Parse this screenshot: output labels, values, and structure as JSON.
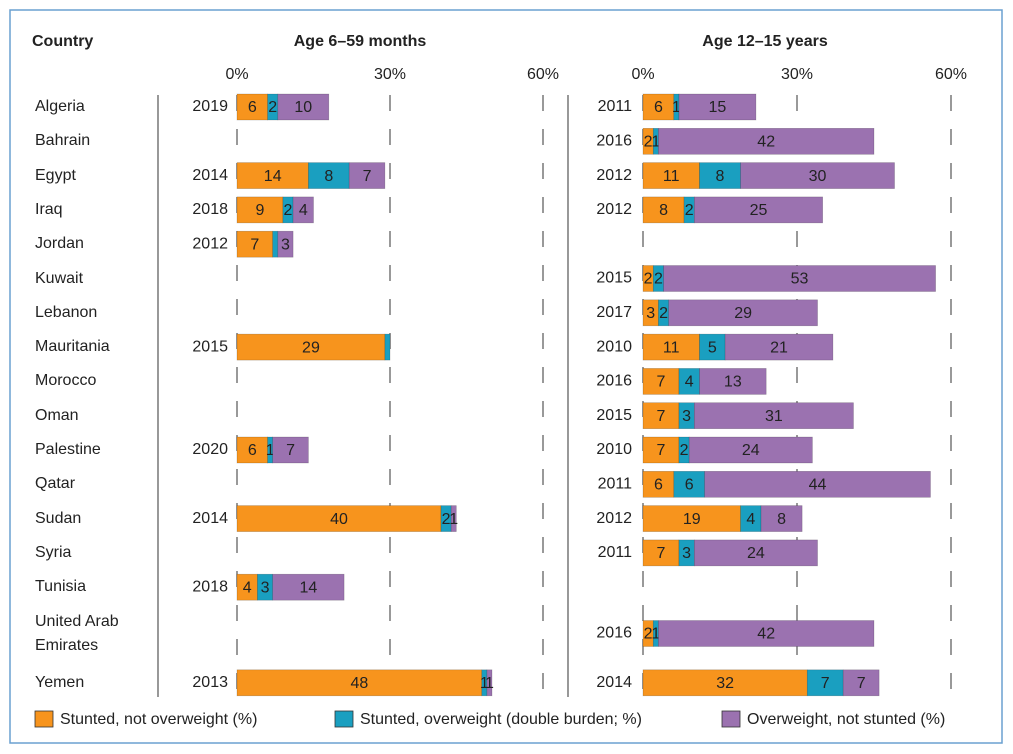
{
  "chart_data": {
    "type": "bar",
    "category_label": "Country",
    "categories": [
      "Algeria",
      "Bahrain",
      "Egypt",
      "Iraq",
      "Jordan",
      "Kuwait",
      "Lebanon",
      "Mauritania",
      "Morocco",
      "Oman",
      "Palestine",
      "Qatar",
      "Sudan",
      "Syria",
      "Tunisia",
      "United Arab Emirates",
      "Yemen"
    ],
    "series": [
      {
        "name": "Stunted, not overweight (%)",
        "color": "#f7941d"
      },
      {
        "name": "Stunted, overweight (double burden; %)",
        "color": "#1a9fc0"
      },
      {
        "name": "Overweight, not stunted (%)",
        "color": "#9b72b0"
      }
    ],
    "panels": [
      {
        "title": "Age 6–59 months",
        "xlim": [
          0,
          60
        ],
        "xticks": [
          {
            "value": 0,
            "label": "0%"
          },
          {
            "value": 30,
            "label": "30%"
          },
          {
            "value": 60,
            "label": "60%"
          }
        ],
        "years": [
          2019,
          null,
          2014,
          2018,
          2012,
          null,
          null,
          2015,
          null,
          null,
          2020,
          null,
          2014,
          null,
          2018,
          null,
          2013
        ],
        "series": [
          {
            "values": [
              6,
              null,
              14,
              9,
              7,
              null,
              null,
              29,
              null,
              null,
              6,
              null,
              40,
              null,
              4,
              null,
              48
            ]
          },
          {
            "values": [
              2,
              null,
              8,
              2,
              1,
              null,
              null,
              1,
              null,
              null,
              1,
              null,
              2,
              null,
              3,
              null,
              1
            ],
            "value_labels": [
              "2",
              null,
              "8",
              "2",
              null,
              null,
              null,
              null,
              null,
              null,
              "1",
              null,
              "2",
              null,
              "3",
              null,
              "1"
            ]
          },
          {
            "values": [
              10,
              null,
              7,
              4,
              3,
              null,
              null,
              null,
              null,
              null,
              7,
              null,
              1,
              null,
              14,
              null,
              1
            ]
          }
        ]
      },
      {
        "title": "Age 12–15 years",
        "xlim": [
          0,
          60
        ],
        "xticks": [
          {
            "value": 0,
            "label": "0%"
          },
          {
            "value": 30,
            "label": "30%"
          },
          {
            "value": 60,
            "label": "60%"
          }
        ],
        "years": [
          2011,
          2016,
          2012,
          2012,
          null,
          2015,
          2017,
          2010,
          2016,
          2015,
          2010,
          2011,
          2012,
          2011,
          null,
          2016,
          2014
        ],
        "series": [
          {
            "values": [
              6,
              2,
              11,
              8,
              null,
              2,
              3,
              11,
              7,
              7,
              7,
              6,
              19,
              7,
              null,
              2,
              32
            ]
          },
          {
            "values": [
              1,
              1,
              8,
              2,
              null,
              2,
              2,
              5,
              4,
              3,
              2,
              6,
              4,
              3,
              null,
              1,
              7
            ]
          },
          {
            "values": [
              15,
              42,
              30,
              25,
              null,
              53,
              29,
              21,
              13,
              31,
              24,
              44,
              8,
              24,
              null,
              42,
              7
            ]
          }
        ]
      }
    ]
  }
}
